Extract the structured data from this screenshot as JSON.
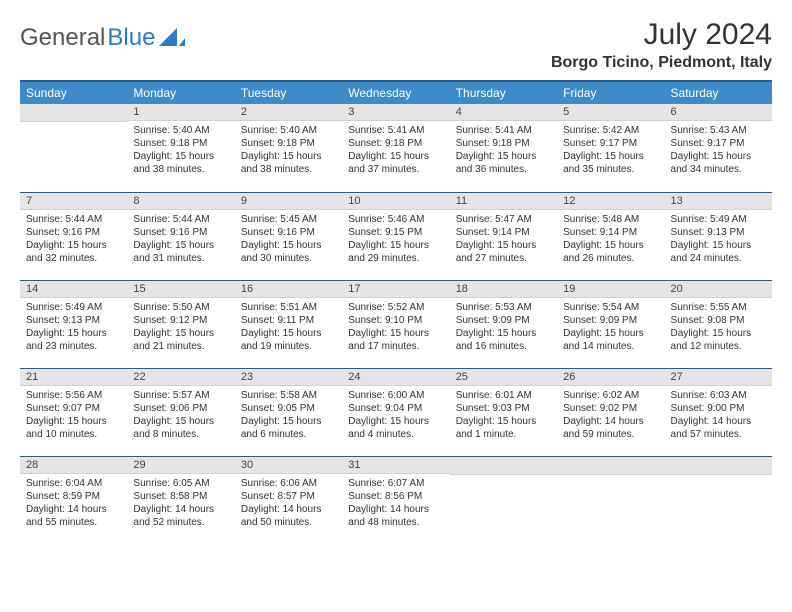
{
  "brand": {
    "part1": "General",
    "part2": "Blue"
  },
  "title": "July 2024",
  "location": "Borgo Ticino, Piedmont, Italy",
  "colors": {
    "header_bg": "#3d8bc8",
    "header_border": "#2a5a85",
    "daynum_bg": "#e5e5e5",
    "text": "#333333",
    "brand_blue": "#2b7cc4"
  },
  "weekdays": [
    "Sunday",
    "Monday",
    "Tuesday",
    "Wednesday",
    "Thursday",
    "Friday",
    "Saturday"
  ],
  "weeks": [
    [
      {
        "num": "",
        "sunrise": "",
        "sunset": "",
        "daylight": ""
      },
      {
        "num": "1",
        "sunrise": "Sunrise: 5:40 AM",
        "sunset": "Sunset: 9:18 PM",
        "daylight": "Daylight: 15 hours and 38 minutes."
      },
      {
        "num": "2",
        "sunrise": "Sunrise: 5:40 AM",
        "sunset": "Sunset: 9:18 PM",
        "daylight": "Daylight: 15 hours and 38 minutes."
      },
      {
        "num": "3",
        "sunrise": "Sunrise: 5:41 AM",
        "sunset": "Sunset: 9:18 PM",
        "daylight": "Daylight: 15 hours and 37 minutes."
      },
      {
        "num": "4",
        "sunrise": "Sunrise: 5:41 AM",
        "sunset": "Sunset: 9:18 PM",
        "daylight": "Daylight: 15 hours and 36 minutes."
      },
      {
        "num": "5",
        "sunrise": "Sunrise: 5:42 AM",
        "sunset": "Sunset: 9:17 PM",
        "daylight": "Daylight: 15 hours and 35 minutes."
      },
      {
        "num": "6",
        "sunrise": "Sunrise: 5:43 AM",
        "sunset": "Sunset: 9:17 PM",
        "daylight": "Daylight: 15 hours and 34 minutes."
      }
    ],
    [
      {
        "num": "7",
        "sunrise": "Sunrise: 5:44 AM",
        "sunset": "Sunset: 9:16 PM",
        "daylight": "Daylight: 15 hours and 32 minutes."
      },
      {
        "num": "8",
        "sunrise": "Sunrise: 5:44 AM",
        "sunset": "Sunset: 9:16 PM",
        "daylight": "Daylight: 15 hours and 31 minutes."
      },
      {
        "num": "9",
        "sunrise": "Sunrise: 5:45 AM",
        "sunset": "Sunset: 9:16 PM",
        "daylight": "Daylight: 15 hours and 30 minutes."
      },
      {
        "num": "10",
        "sunrise": "Sunrise: 5:46 AM",
        "sunset": "Sunset: 9:15 PM",
        "daylight": "Daylight: 15 hours and 29 minutes."
      },
      {
        "num": "11",
        "sunrise": "Sunrise: 5:47 AM",
        "sunset": "Sunset: 9:14 PM",
        "daylight": "Daylight: 15 hours and 27 minutes."
      },
      {
        "num": "12",
        "sunrise": "Sunrise: 5:48 AM",
        "sunset": "Sunset: 9:14 PM",
        "daylight": "Daylight: 15 hours and 26 minutes."
      },
      {
        "num": "13",
        "sunrise": "Sunrise: 5:49 AM",
        "sunset": "Sunset: 9:13 PM",
        "daylight": "Daylight: 15 hours and 24 minutes."
      }
    ],
    [
      {
        "num": "14",
        "sunrise": "Sunrise: 5:49 AM",
        "sunset": "Sunset: 9:13 PM",
        "daylight": "Daylight: 15 hours and 23 minutes."
      },
      {
        "num": "15",
        "sunrise": "Sunrise: 5:50 AM",
        "sunset": "Sunset: 9:12 PM",
        "daylight": "Daylight: 15 hours and 21 minutes."
      },
      {
        "num": "16",
        "sunrise": "Sunrise: 5:51 AM",
        "sunset": "Sunset: 9:11 PM",
        "daylight": "Daylight: 15 hours and 19 minutes."
      },
      {
        "num": "17",
        "sunrise": "Sunrise: 5:52 AM",
        "sunset": "Sunset: 9:10 PM",
        "daylight": "Daylight: 15 hours and 17 minutes."
      },
      {
        "num": "18",
        "sunrise": "Sunrise: 5:53 AM",
        "sunset": "Sunset: 9:09 PM",
        "daylight": "Daylight: 15 hours and 16 minutes."
      },
      {
        "num": "19",
        "sunrise": "Sunrise: 5:54 AM",
        "sunset": "Sunset: 9:09 PM",
        "daylight": "Daylight: 15 hours and 14 minutes."
      },
      {
        "num": "20",
        "sunrise": "Sunrise: 5:55 AM",
        "sunset": "Sunset: 9:08 PM",
        "daylight": "Daylight: 15 hours and 12 minutes."
      }
    ],
    [
      {
        "num": "21",
        "sunrise": "Sunrise: 5:56 AM",
        "sunset": "Sunset: 9:07 PM",
        "daylight": "Daylight: 15 hours and 10 minutes."
      },
      {
        "num": "22",
        "sunrise": "Sunrise: 5:57 AM",
        "sunset": "Sunset: 9:06 PM",
        "daylight": "Daylight: 15 hours and 8 minutes."
      },
      {
        "num": "23",
        "sunrise": "Sunrise: 5:58 AM",
        "sunset": "Sunset: 9:05 PM",
        "daylight": "Daylight: 15 hours and 6 minutes."
      },
      {
        "num": "24",
        "sunrise": "Sunrise: 6:00 AM",
        "sunset": "Sunset: 9:04 PM",
        "daylight": "Daylight: 15 hours and 4 minutes."
      },
      {
        "num": "25",
        "sunrise": "Sunrise: 6:01 AM",
        "sunset": "Sunset: 9:03 PM",
        "daylight": "Daylight: 15 hours and 1 minute."
      },
      {
        "num": "26",
        "sunrise": "Sunrise: 6:02 AM",
        "sunset": "Sunset: 9:02 PM",
        "daylight": "Daylight: 14 hours and 59 minutes."
      },
      {
        "num": "27",
        "sunrise": "Sunrise: 6:03 AM",
        "sunset": "Sunset: 9:00 PM",
        "daylight": "Daylight: 14 hours and 57 minutes."
      }
    ],
    [
      {
        "num": "28",
        "sunrise": "Sunrise: 6:04 AM",
        "sunset": "Sunset: 8:59 PM",
        "daylight": "Daylight: 14 hours and 55 minutes."
      },
      {
        "num": "29",
        "sunrise": "Sunrise: 6:05 AM",
        "sunset": "Sunset: 8:58 PM",
        "daylight": "Daylight: 14 hours and 52 minutes."
      },
      {
        "num": "30",
        "sunrise": "Sunrise: 6:06 AM",
        "sunset": "Sunset: 8:57 PM",
        "daylight": "Daylight: 14 hours and 50 minutes."
      },
      {
        "num": "31",
        "sunrise": "Sunrise: 6:07 AM",
        "sunset": "Sunset: 8:56 PM",
        "daylight": "Daylight: 14 hours and 48 minutes."
      },
      {
        "num": "",
        "sunrise": "",
        "sunset": "",
        "daylight": ""
      },
      {
        "num": "",
        "sunrise": "",
        "sunset": "",
        "daylight": ""
      },
      {
        "num": "",
        "sunrise": "",
        "sunset": "",
        "daylight": ""
      }
    ]
  ]
}
